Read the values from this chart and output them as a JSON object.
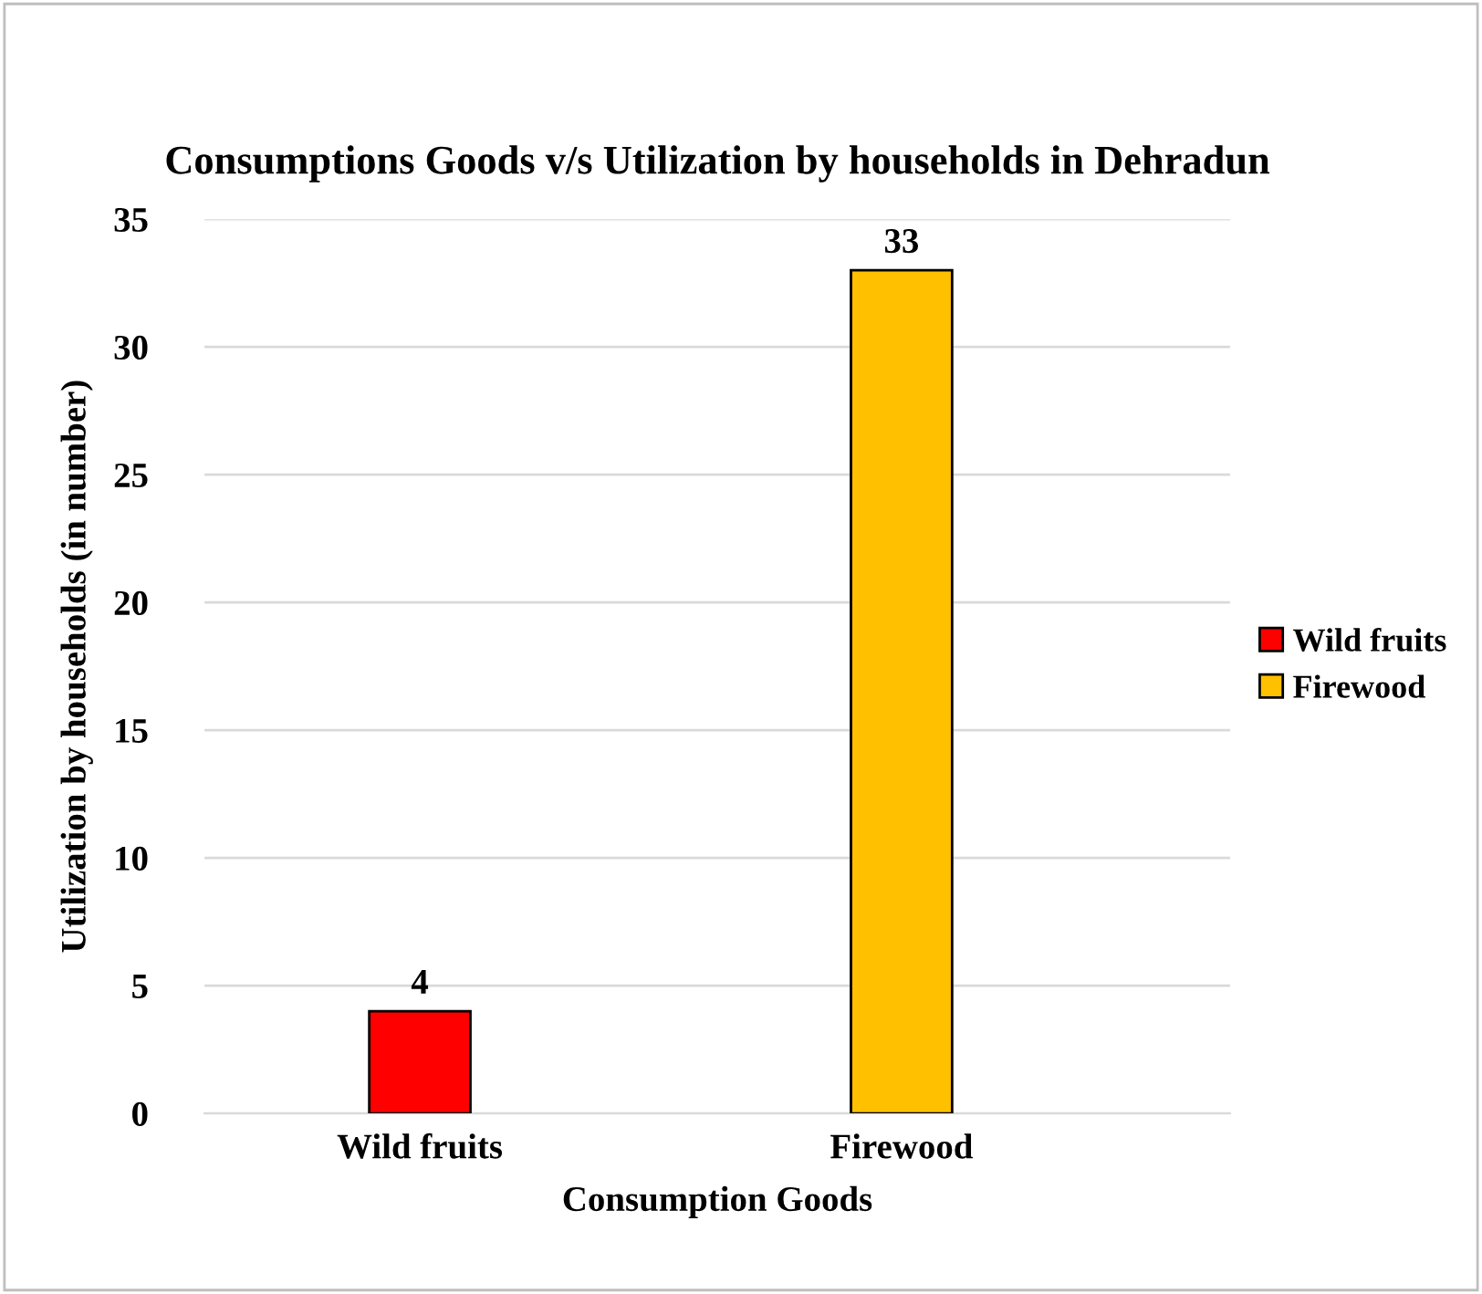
{
  "chart_data": {
    "type": "bar",
    "title": "Consumptions Goods v/s Utilization by households in Dehradun",
    "xlabel": "Consumption Goods",
    "ylabel": "Utilization by households (in number)",
    "categories": [
      "Wild fruits",
      "Firewood"
    ],
    "series": [
      {
        "name": "Wild fruits",
        "color": "#ff0000",
        "values": [
          4,
          null
        ]
      },
      {
        "name": "Firewood",
        "color": "#ffc000",
        "values": [
          null,
          33
        ]
      }
    ],
    "ylim": [
      0,
      35
    ],
    "yticks": [
      0,
      5,
      10,
      15,
      20,
      25,
      30,
      35
    ],
    "grid": "y",
    "legend": "right",
    "data_labels": true
  }
}
